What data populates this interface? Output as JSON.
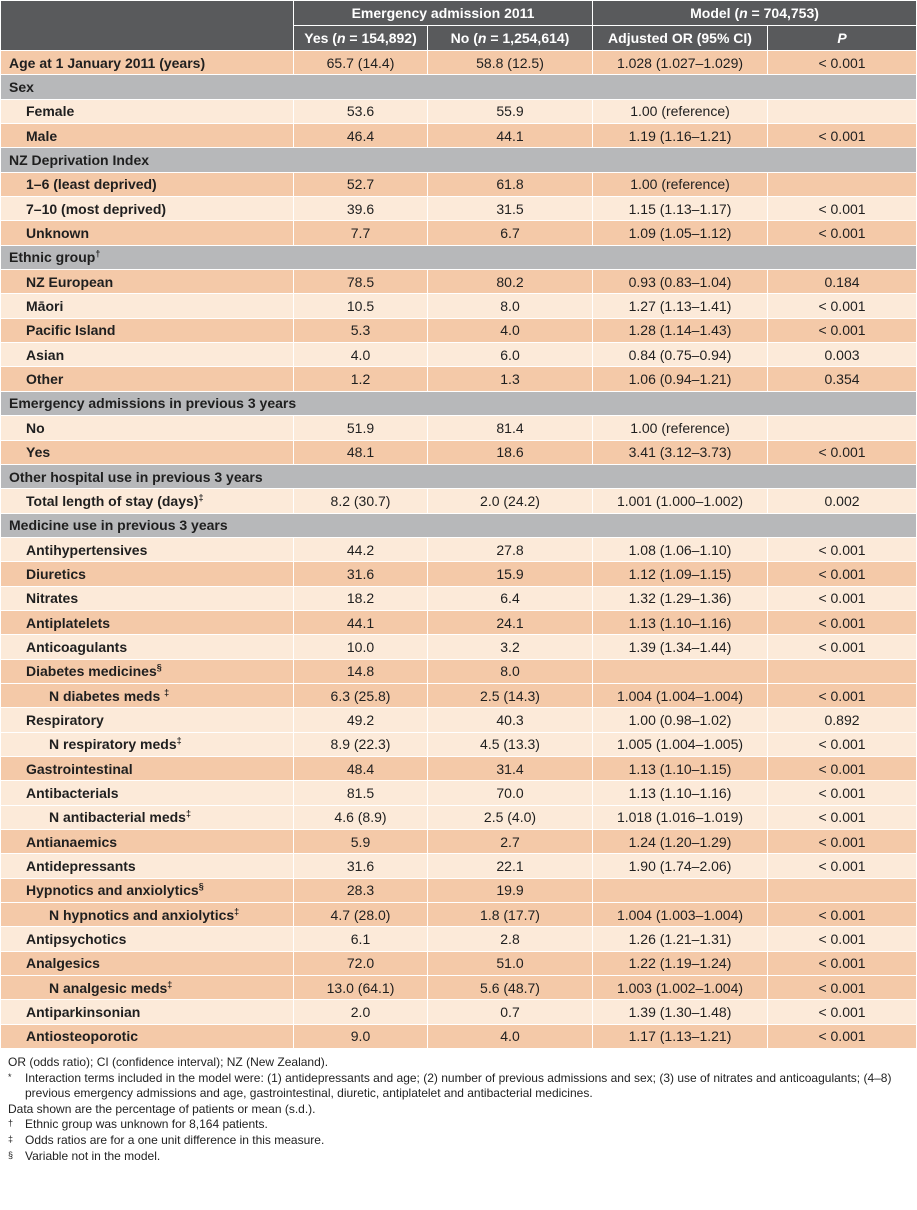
{
  "header": {
    "group1": "Emergency admission 2011",
    "group2_prefix": "Model (",
    "group2_n": "n",
    "group2_suffix": " = 704,753)",
    "col_yes_prefix": "Yes (",
    "col_yes_n": "n",
    "col_yes_suffix": " = 154,892)",
    "col_no_prefix": "No (",
    "col_no_n": "n",
    "col_no_suffix": " = 1,254,614)",
    "col_or": "Adjusted OR (95% CI)",
    "col_p": "P"
  },
  "rows": {
    "age": {
      "label": "Age at 1 January 2011 (years)",
      "yes": "65.7 (14.4)",
      "no": "58.8 (12.5)",
      "or": "1.028 (1.027–1.029)",
      "p": "< 0.001"
    },
    "sec_sex": "Sex",
    "female": {
      "label": "Female",
      "yes": "53.6",
      "no": "55.9",
      "or": "1.00 (reference)",
      "p": ""
    },
    "male": {
      "label": "Male",
      "yes": "46.4",
      "no": "44.1",
      "or": "1.19 (1.16–1.21)",
      "p": "< 0.001"
    },
    "sec_dep": "NZ Deprivation Index",
    "dep_16": {
      "label": "1–6 (least deprived)",
      "yes": "52.7",
      "no": "61.8",
      "or": "1.00 (reference)",
      "p": ""
    },
    "dep_710": {
      "label": "7–10 (most deprived)",
      "yes": "39.6",
      "no": "31.5",
      "or": "1.15 (1.13–1.17)",
      "p": "< 0.001"
    },
    "dep_unk": {
      "label": "Unknown",
      "yes": "7.7",
      "no": "6.7",
      "or": "1.09 (1.05–1.12)",
      "p": "< 0.001"
    },
    "sec_eth": "Ethnic group",
    "sec_eth_mark": "†",
    "eth_nze": {
      "label": "NZ European",
      "yes": "78.5",
      "no": "80.2",
      "or": "0.93 (0.83–1.04)",
      "p": "0.184"
    },
    "eth_maori": {
      "label": "Māori",
      "yes": "10.5",
      "no": "8.0",
      "or": "1.27 (1.13–1.41)",
      "p": "< 0.001"
    },
    "eth_pac": {
      "label": "Pacific Island",
      "yes": "5.3",
      "no": "4.0",
      "or": "1.28 (1.14–1.43)",
      "p": "< 0.001"
    },
    "eth_asian": {
      "label": "Asian",
      "yes": "4.0",
      "no": "6.0",
      "or": "0.84 (0.75–0.94)",
      "p": "0.003"
    },
    "eth_other": {
      "label": "Other",
      "yes": "1.2",
      "no": "1.3",
      "or": "1.06 (0.94–1.21)",
      "p": "0.354"
    },
    "sec_emerg": "Emergency admissions in previous 3 years",
    "em_no": {
      "label": "No",
      "yes": "51.9",
      "no": "81.4",
      "or": "1.00 (reference)",
      "p": ""
    },
    "em_yes": {
      "label": "Yes",
      "yes": "48.1",
      "no": "18.6",
      "or": "3.41 (3.12–3.73)",
      "p": "< 0.001"
    },
    "sec_hosp": "Other hospital use in previous 3 years",
    "los": {
      "label": "Total length of stay (days)",
      "mark": "‡",
      "yes": "8.2 (30.7)",
      "no": "2.0 (24.2)",
      "or": "1.001 (1.000–1.002)",
      "p": "0.002"
    },
    "sec_med": "Medicine use in previous 3 years",
    "m_antihyp": {
      "label": "Antihypertensives",
      "yes": "44.2",
      "no": "27.8",
      "or": "1.08 (1.06–1.10)",
      "p": "< 0.001"
    },
    "m_diur": {
      "label": "Diuretics",
      "yes": "31.6",
      "no": "15.9",
      "or": "1.12 (1.09–1.15)",
      "p": "< 0.001"
    },
    "m_nitr": {
      "label": "Nitrates",
      "yes": "18.2",
      "no": "6.4",
      "or": "1.32 (1.29–1.36)",
      "p": "< 0.001"
    },
    "m_antipl": {
      "label": "Antiplatelets",
      "yes": "44.1",
      "no": "24.1",
      "or": "1.13 (1.10–1.16)",
      "p": "< 0.001"
    },
    "m_antico": {
      "label": "Anticoagulants",
      "yes": "10.0",
      "no": "3.2",
      "or": "1.39 (1.34–1.44)",
      "p": "< 0.001"
    },
    "m_diab": {
      "label": "Diabetes medicines",
      "mark": "§",
      "yes": "14.8",
      "no": "8.0",
      "or": "",
      "p": ""
    },
    "m_ndiab": {
      "label": "N diabetes meds ",
      "mark": "‡",
      "yes": "6.3 (25.8)",
      "no": "2.5 (14.3)",
      "or": "1.004 (1.004–1.004)",
      "p": "< 0.001"
    },
    "m_resp": {
      "label": "Respiratory",
      "yes": "49.2",
      "no": "40.3",
      "or": "1.00 (0.98–1.02)",
      "p": "0.892"
    },
    "m_nresp": {
      "label": "N respiratory meds",
      "mark": "‡",
      "yes": "8.9 (22.3)",
      "no": "4.5 (13.3)",
      "or": "1.005 (1.004–1.005)",
      "p": "< 0.001"
    },
    "m_gastro": {
      "label": "Gastrointestinal",
      "yes": "48.4",
      "no": "31.4",
      "or": "1.13 (1.10–1.15)",
      "p": "< 0.001"
    },
    "m_antibac": {
      "label": "Antibacterials",
      "yes": "81.5",
      "no": "70.0",
      "or": "1.13 (1.10–1.16)",
      "p": "< 0.001"
    },
    "m_nantibac": {
      "label": "N antibacterial meds",
      "mark": "‡",
      "yes": "4.6 (8.9)",
      "no": "2.5 (4.0)",
      "or": "1.018 (1.016–1.019)",
      "p": "< 0.001"
    },
    "m_antianaem": {
      "label": "Antianaemics",
      "yes": "5.9",
      "no": "2.7",
      "or": "1.24 (1.20–1.29)",
      "p": "< 0.001"
    },
    "m_antidep": {
      "label": "Antidepressants",
      "yes": "31.6",
      "no": "22.1",
      "or": "1.90 (1.74–2.06)",
      "p": "< 0.001"
    },
    "m_hypn": {
      "label": "Hypnotics and anxiolytics",
      "mark": "§",
      "yes": "28.3",
      "no": "19.9",
      "or": "",
      "p": ""
    },
    "m_nhypn": {
      "label": "N hypnotics and anxiolytics",
      "mark": "‡",
      "yes": "4.7 (28.0)",
      "no": "1.8 (17.7)",
      "or": "1.004 (1.003–1.004)",
      "p": "< 0.001"
    },
    "m_antipsy": {
      "label": "Antipsychotics",
      "yes": "6.1",
      "no": "2.8",
      "or": "1.26 (1.21–1.31)",
      "p": "< 0.001"
    },
    "m_analg": {
      "label": "Analgesics",
      "yes": "72.0",
      "no": "51.0",
      "or": "1.22 (1.19–1.24)",
      "p": "< 0.001"
    },
    "m_nanalg": {
      "label": "N analgesic meds",
      "mark": "‡",
      "yes": "13.0 (64.1)",
      "no": "5.6 (48.7)",
      "or": "1.003 (1.002–1.004)",
      "p": "< 0.001"
    },
    "m_antipark": {
      "label": "Antiparkinsonian",
      "yes": "2.0",
      "no": "0.7",
      "or": "1.39 (1.30–1.48)",
      "p": "< 0.001"
    },
    "m_antiost": {
      "label": "Antiosteoporotic",
      "yes": "9.0",
      "no": "4.0",
      "or": "1.17 (1.13–1.21)",
      "p": "< 0.001"
    }
  },
  "notes": {
    "abbrev": "OR (odds ratio); CI (confidence interval); NZ (New Zealand).",
    "star_mark": "*",
    "star_text": "Interaction terms included in the model were: (1) antidepressants and age; (2) number of previous admissions and sex; (3) use of nitrates and anticoagulants; (4–8) previous emergency admissions and age, gastrointestinal, diuretic, antiplatelet and antibacterial medicines.",
    "data_shown": "Data shown are the percentage of patients or mean (s.d.).",
    "dagger_mark": "†",
    "dagger_text": "Ethnic group was unknown for 8,164 patients.",
    "ddagger_mark": "‡",
    "ddagger_text": "Odds ratios are for a one unit difference in this measure.",
    "section_mark": "§",
    "section_text": "Variable not in the model."
  }
}
